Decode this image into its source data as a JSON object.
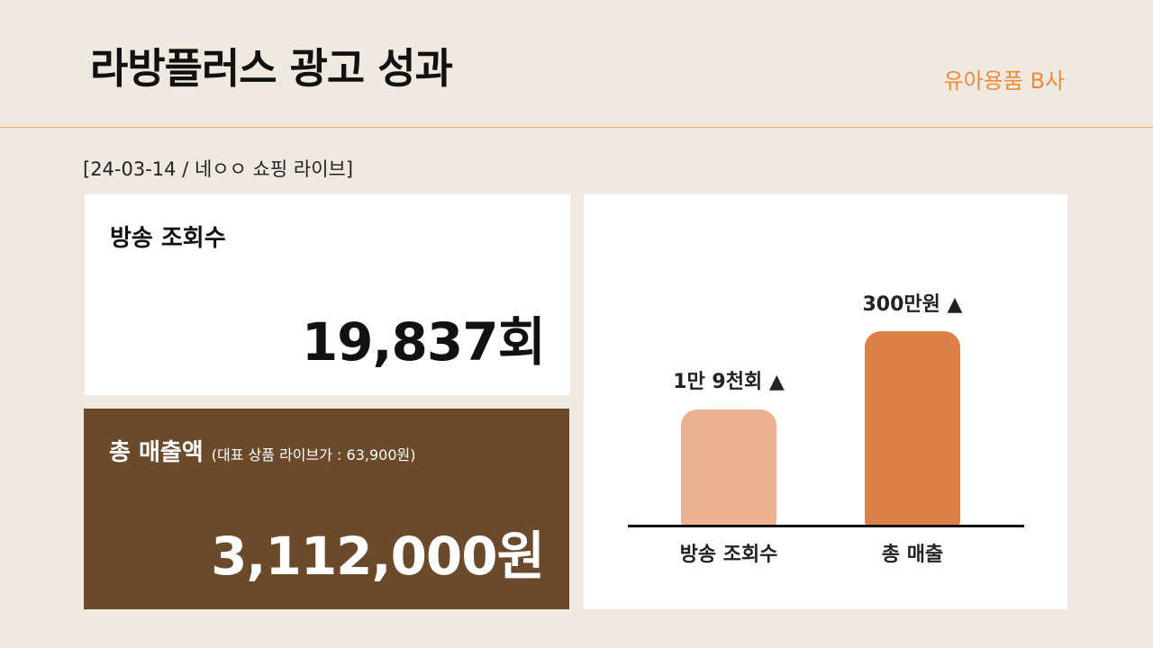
{
  "header": {
    "title": "라방플러스 광고 성과",
    "subtitle": "유아용품 B사"
  },
  "date_label": "[24-03-14 / 네ㅇㅇ 쇼핑 라이브]",
  "cards": [
    {
      "title": "방송 조회수",
      "value": "19,837회"
    },
    {
      "title": "총 매출액",
      "note": "(대표 상품 라이브가 : 63,900원)",
      "value": "3,112,000원"
    }
  ],
  "chart": {
    "bars": [
      {
        "label": "1만 9천회 ▲",
        "category": "방송 조회수"
      },
      {
        "label": "300만원 ▲",
        "category": "총 매출"
      }
    ]
  }
}
